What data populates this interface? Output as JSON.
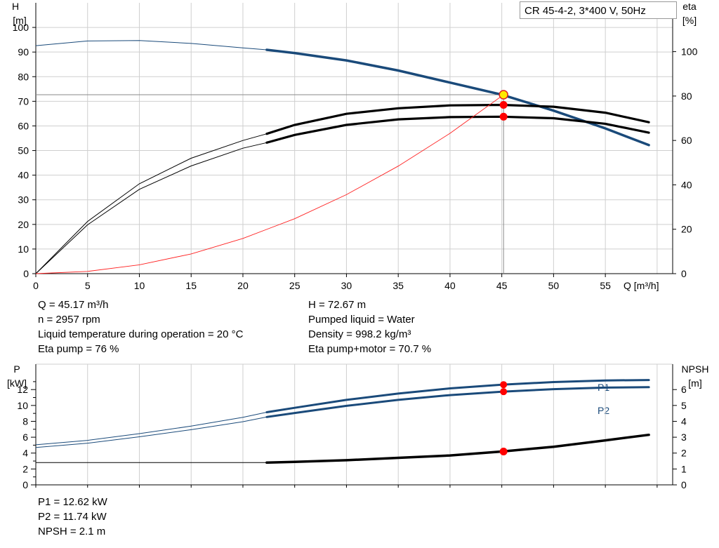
{
  "chart_data": [
    {
      "type": "line",
      "title": "CR 45-4-2, 3*400 V, 50Hz",
      "xlabel": "Q [m³/h]",
      "ylabel_left": [
        "H",
        "[m]"
      ],
      "ylabel_right": [
        "eta",
        "[%]"
      ],
      "xlim": [
        0,
        61.5
      ],
      "ylim_left": [
        0,
        110
      ],
      "ylim_right": [
        0,
        122
      ],
      "x_ticks": [
        0,
        5,
        10,
        15,
        20,
        25,
        30,
        35,
        40,
        45,
        50,
        55
      ],
      "y_ticks_left": [
        0,
        10,
        20,
        30,
        40,
        50,
        60,
        70,
        80,
        90,
        100
      ],
      "y_ticks_right": [
        0,
        20,
        40,
        60,
        80,
        100
      ],
      "grid": true,
      "duty_point": {
        "x": 45.17,
        "y": 72.67
      },
      "series": [
        {
          "role": "H",
          "color": "#1a4a7a",
          "axis": "left",
          "x": [
            0,
            5,
            10,
            15,
            20,
            22.3,
            25,
            30,
            35,
            40,
            45,
            50,
            55,
            59.2
          ],
          "y": [
            92.6,
            94.5,
            94.7,
            93.5,
            91.7,
            90.9,
            89.6,
            86.6,
            82.5,
            77.6,
            72.7,
            66.2,
            59.0,
            52.2
          ],
          "thick_from": 22.3
        },
        {
          "role": "eta pump",
          "color": "#000000",
          "axis": "right",
          "x": [
            0,
            5,
            10,
            15,
            20,
            22.3,
            25,
            30,
            35,
            40,
            45,
            50,
            55,
            59.2
          ],
          "y": [
            0,
            23.5,
            40.5,
            52,
            60,
            63,
            67,
            72,
            74.5,
            75.8,
            76.0,
            75.2,
            72.5,
            68.2
          ],
          "thick_from": 22.3
        },
        {
          "role": "eta pump+motor",
          "color": "#000000",
          "axis": "right",
          "x": [
            0,
            5,
            10,
            15,
            20,
            22.3,
            25,
            30,
            35,
            40,
            45,
            50,
            55,
            59.2
          ],
          "y": [
            0,
            22,
            38,
            48.5,
            56.5,
            59,
            62.5,
            67,
            69.5,
            70.5,
            70.7,
            70,
            67.5,
            63.5
          ],
          "thick_from": 22.3
        },
        {
          "role": "system curve",
          "color": "#ff2020",
          "axis": "left",
          "x": [
            0,
            5,
            10,
            15,
            20,
            25,
            30,
            35,
            40,
            45.17
          ],
          "y": [
            0,
            0.9,
            3.6,
            8.0,
            14.3,
            22.3,
            32.1,
            43.7,
            57.0,
            72.67
          ]
        }
      ],
      "markers_right": [
        76.0,
        70.7
      ]
    },
    {
      "type": "line",
      "xlim": [
        0,
        61.5
      ],
      "ylabel_left": [
        "P",
        "[kW]"
      ],
      "ylabel_right": [
        "NPSH",
        "[m]"
      ],
      "ylim_left": [
        0,
        15.2
      ],
      "ylim_right": [
        0,
        7.6
      ],
      "y_ticks_left": [
        0,
        2,
        4,
        6,
        8,
        10,
        12
      ],
      "y_ticks_right": [
        0,
        1,
        2,
        3,
        4,
        5,
        6
      ],
      "grid": true,
      "series": [
        {
          "name": "P1",
          "color": "#1a4a7a",
          "axis": "left",
          "x": [
            0,
            5,
            10,
            15,
            20,
            22.3,
            25,
            30,
            35,
            40,
            45,
            50,
            55,
            59.2
          ],
          "y": [
            5.05,
            5.6,
            6.45,
            7.4,
            8.5,
            9.15,
            9.7,
            10.7,
            11.5,
            12.15,
            12.62,
            12.95,
            13.15,
            13.2
          ],
          "thick_from": 22.3
        },
        {
          "name": "P2",
          "color": "#1a4a7a",
          "axis": "left",
          "x": [
            0,
            5,
            10,
            15,
            20,
            22.3,
            25,
            30,
            35,
            40,
            45,
            50,
            55,
            59.2
          ],
          "y": [
            4.7,
            5.25,
            6.05,
            6.95,
            7.95,
            8.55,
            9.05,
            9.95,
            10.7,
            11.3,
            11.74,
            12.05,
            12.25,
            12.3
          ],
          "thick_from": 22.3
        },
        {
          "role": "NPSH",
          "color": "#000000",
          "axis": "right",
          "x": [
            0,
            5,
            10,
            15,
            20,
            22.3,
            25,
            30,
            35,
            40,
            45,
            50,
            55,
            59.2
          ],
          "y": [
            1.4,
            1.4,
            1.4,
            1.4,
            1.4,
            1.4,
            1.45,
            1.55,
            1.7,
            1.85,
            2.1,
            2.4,
            2.8,
            3.15
          ],
          "thick_from": 22.3
        }
      ],
      "markers_left": [
        12.62,
        11.74
      ],
      "markers_right": [
        2.1
      ],
      "label_p1": "P1",
      "label_p2": "P2"
    }
  ],
  "info_top": {
    "left": [
      "Q = 45.17 m³/h",
      "n = 2957 rpm",
      "Liquid temperature during operation = 20 °C",
      "Eta pump = 76 %"
    ],
    "right": [
      "H = 72.67 m",
      "Pumped liquid = Water",
      "Density = 998.2 kg/m³",
      "Eta pump+motor = 70.7 %"
    ]
  },
  "info_bottom": [
    "P1 = 12.62 kW",
    "P2 = 11.74 kW",
    "NPSH = 2.1 m"
  ]
}
